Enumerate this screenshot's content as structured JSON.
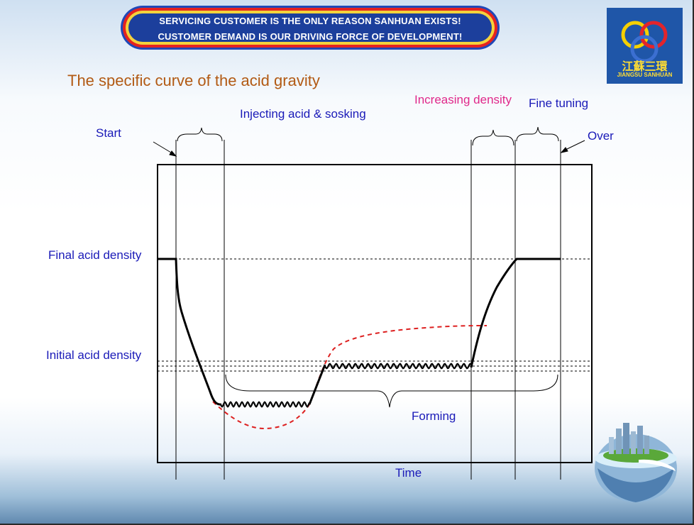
{
  "banner": {
    "line1": "SERVICING CUSTOMER IS THE ONLY REASON  SANHUAN EXISTS!",
    "line2": "CUSTOMER DEMAND IS OUR DRIVING FORCE OF DEVELOPMENT!"
  },
  "logo": {
    "chinese": "江蘇三環",
    "english": "JIANGSU SANHUAN"
  },
  "diagram": {
    "title": "The specific curve of the acid gravity",
    "phases": {
      "start": "Start",
      "injecting": "Injecting acid & sosking",
      "increasing": "Increasing density",
      "fine_tuning": "Fine tuning",
      "over": "Over",
      "forming": "Forming"
    },
    "levels": {
      "final": "Final acid density",
      "initial": "Initial acid density"
    },
    "axis": {
      "x": "Time"
    },
    "colors": {
      "labels": "#1a1ab8",
      "title": "#b25a14",
      "increasing_label": "#e0288a",
      "dashed_curve": "#dd2020"
    }
  }
}
